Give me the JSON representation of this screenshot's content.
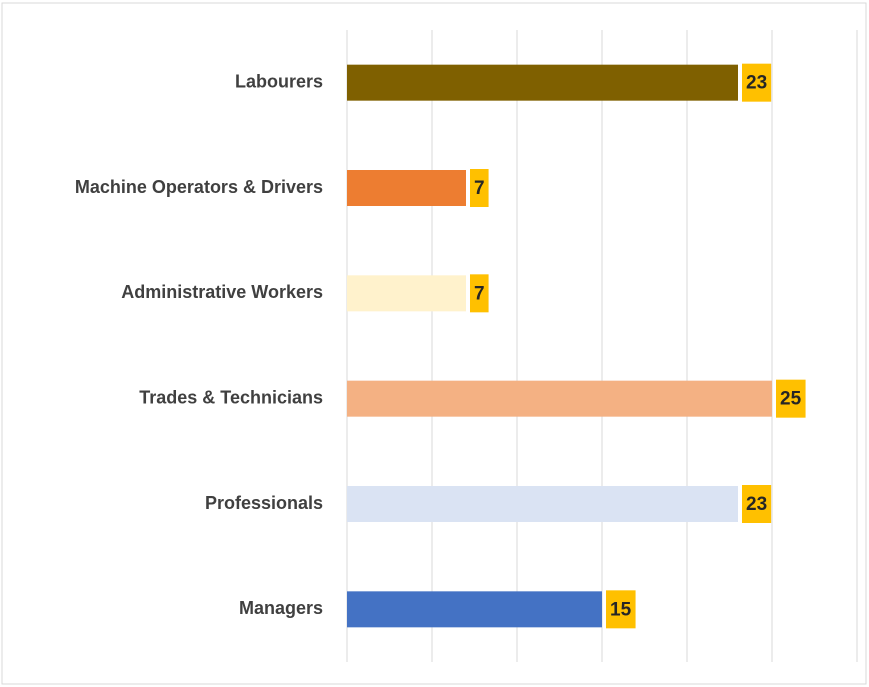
{
  "chart_data": {
    "type": "bar",
    "orientation": "horizontal",
    "categories": [
      "Labourers",
      "Machine Operators & Drivers",
      "Administrative Workers",
      "Trades & Technicians",
      "Professionals",
      "Managers"
    ],
    "values": [
      23,
      7,
      7,
      25,
      23,
      15
    ],
    "colors": [
      "#7f6000",
      "#ed7d31",
      "#fff2cc",
      "#f4b183",
      "#dae3f3",
      "#4472c4"
    ],
    "xlim": [
      0,
      30
    ],
    "xticks": [
      0,
      5,
      10,
      15,
      20,
      25,
      30
    ],
    "grid": true
  }
}
